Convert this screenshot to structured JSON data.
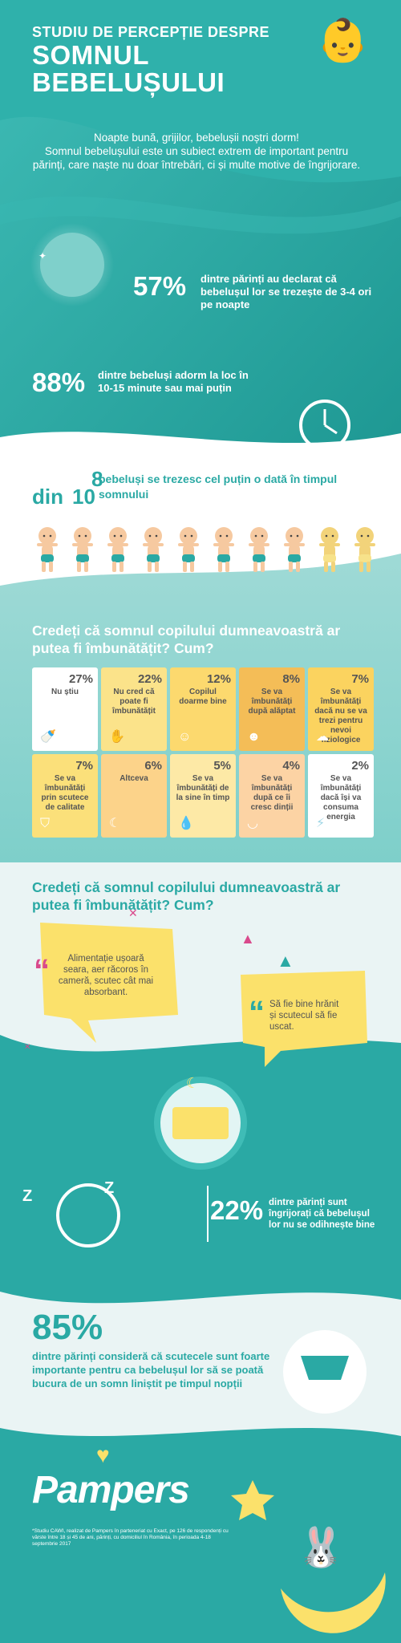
{
  "header": {
    "subtitle": "STUDIU DE PERCEPȚIE DESPRE",
    "title_line1": "SOMNUL",
    "title_line2": "BEBELUȘULUI"
  },
  "intro": {
    "line1": "Noapte bună, grijilor, bebelușii noștri dorm!",
    "line2": "Somnul bebelușului este un subiect extrem de important pentru părinți, care naște nu doar întrebări, ci și multe motive de îngrijorare."
  },
  "stats": {
    "s57": {
      "value": "57%",
      "text": "dintre părinți au declarat că bebelușul lor se trezește de 3-4 ori pe noapte"
    },
    "s88": {
      "value": "88%",
      "text": "dintre bebeluși adorm la loc în 10-15 minute sau mai puțin"
    },
    "s8of10": {
      "num": "8",
      "din": "din",
      "den": "10",
      "text": "bebeluși se trezesc cel puțin o dată în timpul somnului"
    },
    "s22": {
      "value": "22%",
      "text": "dintre părinți sunt îngrijorați că bebelușul lor nu se odihnește bine"
    },
    "s85": {
      "value": "85%",
      "text": "dintre părinți consideră că scutecele sunt foarte importante pentru ca bebelușul lor să se poată bucura de un somn liniștit pe timpul nopții"
    }
  },
  "babies": {
    "total": 10,
    "awake": 8
  },
  "survey1": {
    "question": "Credeți că somnul copilului dumneavoastră ar putea fi îmbunătățit? Cum?",
    "cells": [
      {
        "pct": "27%",
        "label": "Nu știu",
        "color": "#ffffff",
        "icon": "bottle-icon"
      },
      {
        "pct": "22%",
        "label": "Nu cred că poate fi îmbunătățit",
        "color": "#fbe38a",
        "icon": "hand-icon"
      },
      {
        "pct": "12%",
        "label": "Copilul doarme bine",
        "color": "#fcd96e",
        "icon": "smile-icon"
      },
      {
        "pct": "8%",
        "label": "Se va îmbunătăți după alăptat",
        "color": "#f4bd57",
        "icon": "baby-face-icon"
      },
      {
        "pct": "7%",
        "label": "Se va îmbunătăți dacă nu se va trezi pentru nevoi fiziologice",
        "color": "#fbd35f",
        "icon": "cloud-icon"
      },
      {
        "pct": "7%",
        "label": "Se va îmbunătăți prin scutece de calitate",
        "color": "#fbe07a",
        "icon": "diaper-icon"
      },
      {
        "pct": "6%",
        "label": "Altceva",
        "color": "#fcd38a",
        "icon": "moon-icon"
      },
      {
        "pct": "5%",
        "label": "Se va îmbunătăți de la sine în timp",
        "color": "#fde9a6",
        "icon": "drop-icon"
      },
      {
        "pct": "4%",
        "label": "Se va îmbunătăți după ce îi cresc dinții",
        "color": "#fcd3a4",
        "icon": "teeth-icon"
      },
      {
        "pct": "2%",
        "label": "Se va îmbunătăți dacă își va consuma energia",
        "color": "#ffffff",
        "icon": "bolt-icon"
      }
    ]
  },
  "survey2": {
    "question": "Credeți că somnul copilului dumneavoastră ar putea fi îmbunătățit? Cum?",
    "quote1": "Alimentație ușoară seara, aer răcoros în cameră, scutec cât mai absorbant.",
    "quote2": "Să fie bine hrănit și scutecul să fie uscat."
  },
  "brand": {
    "logo": "Pampers",
    "teal": "#2aa9a4",
    "yellow": "#fbe16b"
  },
  "footnote": "*Studiu CAWI, realizat de Pampers în parteneriat cu Exact, pe 126 de respondenți cu vârste între 18 și 45 de ani, părinți, cu domiciliul în România, în perioada 4-18 septembrie 2017"
}
